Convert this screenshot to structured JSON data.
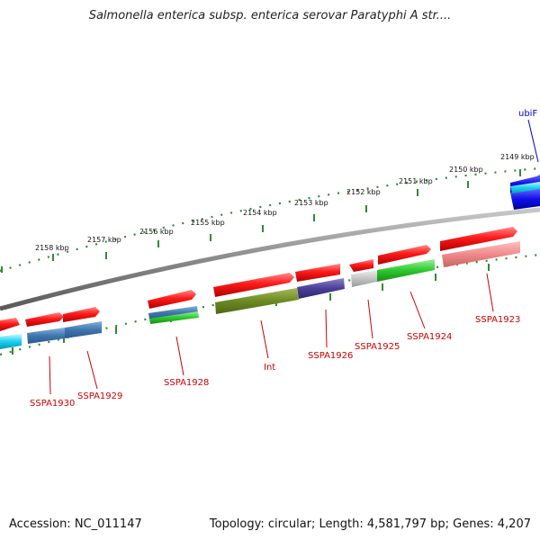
{
  "title": "Salmonella enterica subsp. enterica serovar Paratyphi A str....",
  "footer": {
    "accession": "Accession: NC_011147",
    "summary": "Topology: circular; Length: 4,581,797 bp; Genes: 4,207"
  },
  "scale_labels": [
    "2149 kbp",
    "2150 kbp",
    "2151 kbp",
    "2152 kbp",
    "2153 kbp",
    "2154 kbp",
    "2155 kbp",
    "2156 kbp",
    "2157 kbp",
    "2158 kbp"
  ],
  "gene_labels": [
    "ubiF",
    "SSPA1923",
    "SSPA1924",
    "SSPA1925",
    "SSPA1926",
    "Int",
    "SSPA1928",
    "SSPA1929",
    "SSPA1930"
  ],
  "colors": {
    "forward_gene": "#e41a1c",
    "tick_green": "#2e8b2e",
    "backbone": "#8a8a8a",
    "label_red": "#cc0000",
    "label_blue": "#0000cc"
  }
}
